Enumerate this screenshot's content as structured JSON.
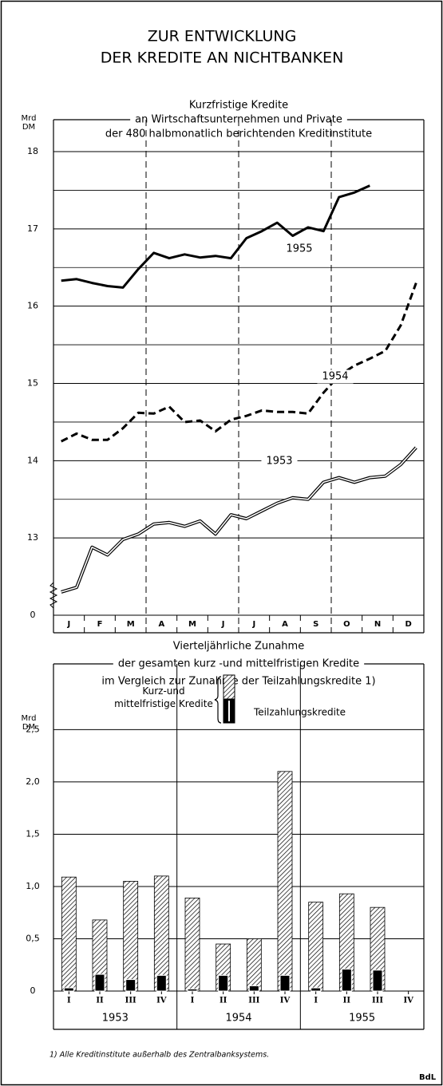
{
  "title": [
    "ZUR ENTWICKLUNG",
    "DER KREDITE AN NICHTBANKEN"
  ],
  "chart_data": [
    {
      "type": "line",
      "title": [
        "Kurzfristige Kredite",
        "an Wirtschaftsunternehmen und Private",
        "der 480 halbmonatlich berichtenden Kreditinstitute"
      ],
      "y_label": [
        "Mrd",
        "DM"
      ],
      "categories": [
        "J",
        null,
        "F",
        null,
        "M",
        null,
        "A",
        null,
        "M",
        null,
        "J",
        null,
        "J",
        null,
        "A",
        null,
        "S",
        null,
        "O",
        null,
        "N",
        null,
        "D",
        null
      ],
      "series": [
        {
          "name": "1955",
          "style": "solid",
          "color": "#000000",
          "values": [
            16.33,
            16.35,
            16.3,
            16.26,
            16.24,
            16.48,
            16.69,
            16.62,
            16.67,
            16.63,
            16.65,
            16.62,
            16.88,
            16.97,
            17.08,
            16.91,
            17.02,
            16.97,
            17.41,
            17.47,
            17.56,
            null,
            null,
            null
          ]
        },
        {
          "name": "1954",
          "style": "dashed",
          "color": "#000000",
          "values": [
            14.25,
            14.35,
            14.27,
            14.27,
            14.42,
            14.62,
            14.61,
            14.7,
            14.5,
            14.52,
            14.38,
            14.53,
            14.58,
            14.65,
            14.63,
            14.63,
            14.61,
            14.88,
            15.1,
            15.23,
            15.32,
            15.42,
            15.75,
            16.3
          ]
        },
        {
          "name": "1953",
          "style": "double",
          "color": "#000000",
          "values": [
            12.3,
            12.36,
            12.88,
            12.78,
            12.98,
            13.05,
            13.18,
            13.2,
            13.15,
            13.22,
            13.05,
            13.3,
            13.25,
            13.35,
            13.45,
            13.52,
            13.5,
            13.72,
            13.78,
            13.72,
            13.78,
            13.8,
            13.95,
            14.17
          ]
        }
      ],
      "ylim": [
        12,
        18
      ],
      "yticks": [
        {
          "value": 12,
          "label": "0"
        },
        13,
        14,
        15,
        16,
        17,
        18
      ],
      "yminor": [
        13.5,
        14.5,
        15.5,
        16.5,
        17.5
      ],
      "grid": true
    },
    {
      "type": "bar",
      "title": [
        "Vierteljährliche Zunahme",
        "der gesamten kurz -und mittelfristigen Kredite",
        "im Vergleich zur Zunahme der Teilzahlungskredite 1)"
      ],
      "y_label": [
        "Mrd",
        "DM"
      ],
      "categories": [
        "I",
        "II",
        "III",
        "IV",
        "I",
        "II",
        "III",
        "IV",
        "I",
        "II",
        "III",
        "IV"
      ],
      "groups": [
        "1953",
        "1954",
        "1955"
      ],
      "series": [
        {
          "name": "Kurz-und mittelfristige Kredite",
          "pattern": "hatch",
          "color": "#000000",
          "values": [
            1.09,
            0.68,
            1.05,
            1.1,
            0.89,
            0.45,
            0.5,
            2.1,
            0.85,
            0.93,
            0.8,
            null
          ]
        },
        {
          "name": "Teilzahlungskredite",
          "color": "#000000",
          "values": [
            0.03,
            0.16,
            0.11,
            0.15,
            0.02,
            0.15,
            0.05,
            0.15,
            0.03,
            0.21,
            0.2,
            null
          ]
        }
      ],
      "ylim": [
        0,
        2.9
      ],
      "yticks": [
        0,
        {
          "value": 0.5,
          "label": "0,5"
        },
        {
          "value": 1.0,
          "label": "1,0"
        },
        {
          "value": 1.5,
          "label": "1,5"
        },
        {
          "value": 2.0,
          "label": "2,0"
        },
        {
          "value": 2.5,
          "label": "2,5"
        }
      ],
      "grid": true
    }
  ],
  "footnote": "1) Alle Kreditinstitute außerhalb des Zentralbanksystems.",
  "source": "BdL"
}
